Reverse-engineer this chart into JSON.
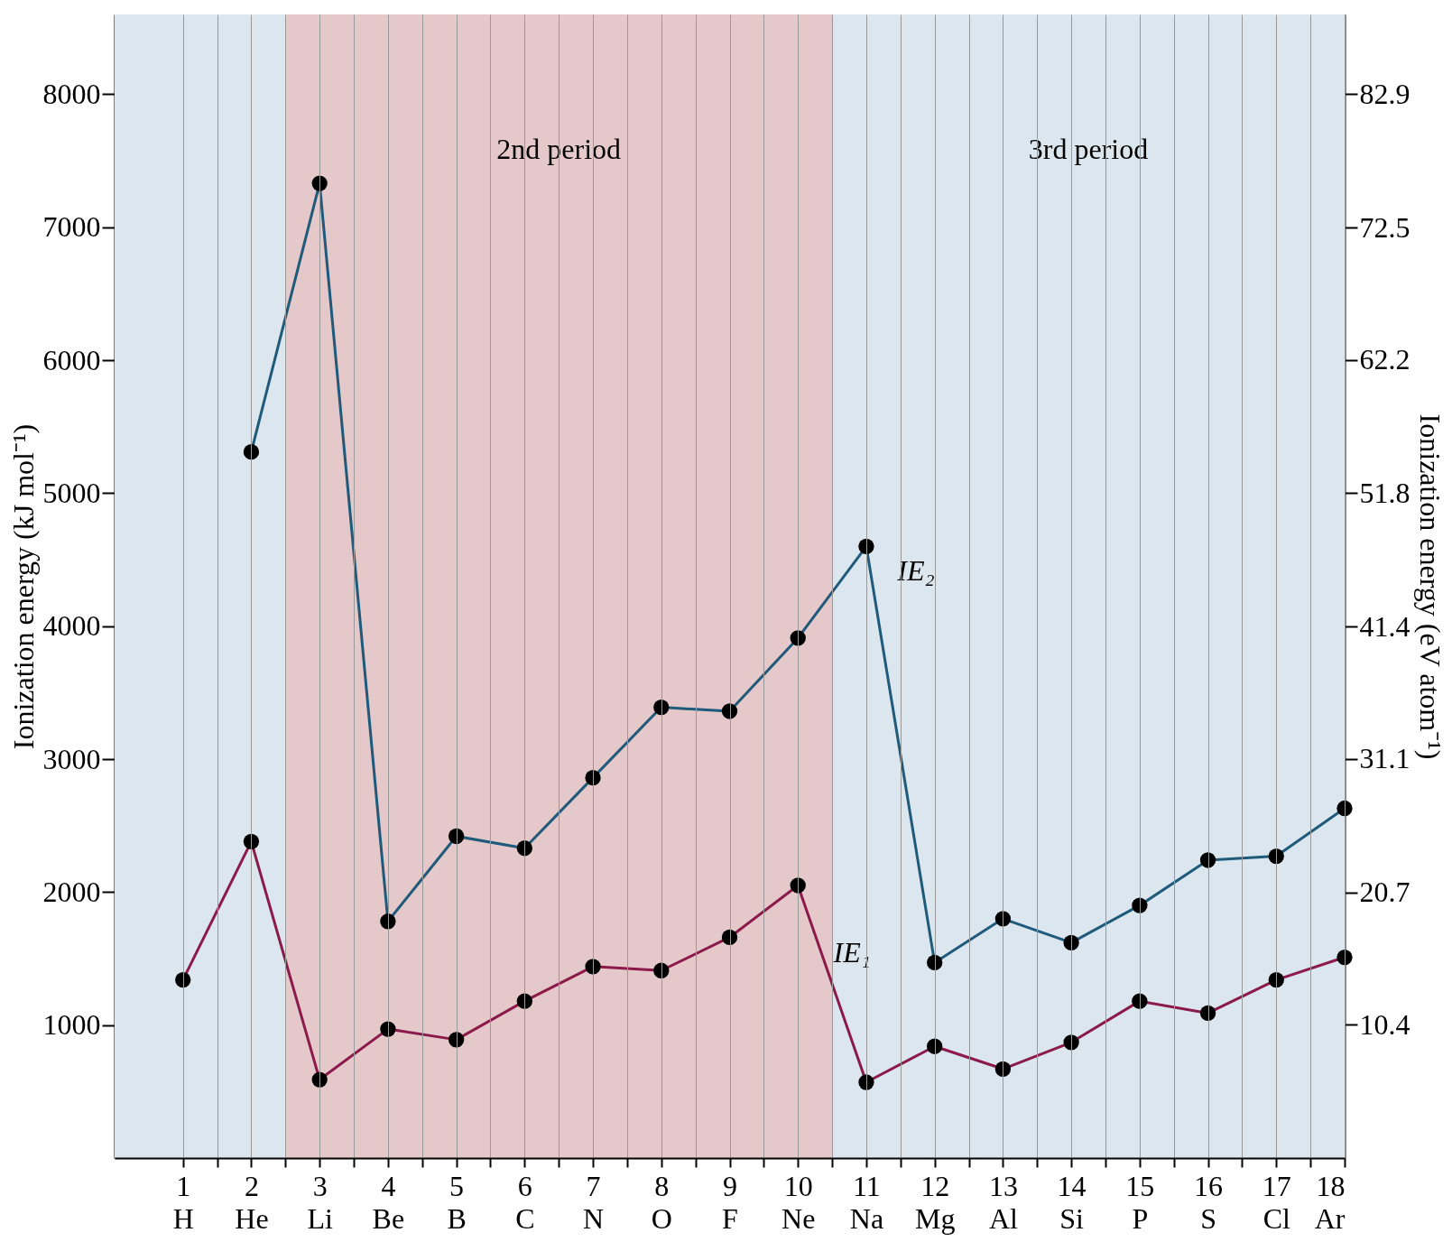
{
  "chart_data": {
    "type": "line",
    "ylabel": "Ionization energy (kJ mol⁻¹)",
    "y2label": "Ionization energy (eV atom⁻¹)",
    "x": [
      1,
      2,
      3,
      4,
      5,
      6,
      7,
      8,
      9,
      10,
      11,
      12,
      13,
      14,
      15,
      16,
      17,
      18
    ],
    "xlim": [
      0,
      18
    ],
    "xticks": [
      {
        "value": 1,
        "label": "1 H"
      },
      {
        "value": 1.5,
        "label": null
      },
      {
        "value": 2,
        "label": "2 He"
      },
      {
        "value": 2.5,
        "label": null
      },
      {
        "value": 3,
        "label": "3 Li"
      },
      {
        "value": 3.5,
        "label": null
      },
      {
        "value": 4,
        "label": "4 Be"
      },
      {
        "value": 4.5,
        "label": null
      },
      {
        "value": 5,
        "label": "5 B"
      },
      {
        "value": 5.5,
        "label": null
      },
      {
        "value": 6,
        "label": "6 C"
      },
      {
        "value": 6.5,
        "label": null
      },
      {
        "value": 7,
        "label": "7 N"
      },
      {
        "value": 7.5,
        "label": null
      },
      {
        "value": 8,
        "label": "8 O"
      },
      {
        "value": 8.5,
        "label": null
      },
      {
        "value": 9,
        "label": "9 F"
      },
      {
        "value": 9.5,
        "label": null
      },
      {
        "value": 10,
        "label": "10 Ne"
      },
      {
        "value": 10.5,
        "label": null
      },
      {
        "value": 11,
        "label": "11 Na"
      },
      {
        "value": 11.5,
        "label": null
      },
      {
        "value": 12,
        "label": "12 Mg"
      },
      {
        "value": 12.5,
        "label": null
      },
      {
        "value": 13,
        "label": "13 Al"
      },
      {
        "value": 13.5,
        "label": null
      },
      {
        "value": 14,
        "label": "14 Si"
      },
      {
        "value": 14.5,
        "label": null
      },
      {
        "value": 15,
        "label": "15 P"
      },
      {
        "value": 15.5,
        "label": null
      },
      {
        "value": 16,
        "label": "16 S"
      },
      {
        "value": 16.5,
        "label": null
      },
      {
        "value": 17,
        "label": "17 Cl"
      },
      {
        "value": 17.5,
        "label": null
      },
      {
        "value": 18,
        "label": "18 Ar"
      }
    ],
    "ylim": [
      0,
      8600
    ],
    "yticks": [
      {
        "value": 1000,
        "label": "1000"
      },
      {
        "value": 2000,
        "label": "2000"
      },
      {
        "value": 3000,
        "label": "3000"
      },
      {
        "value": 4000,
        "label": "4000"
      },
      {
        "value": 5000,
        "label": "5000"
      },
      {
        "value": 6000,
        "label": "6000"
      },
      {
        "value": 7000,
        "label": "7000"
      },
      {
        "value": 8000,
        "label": "8000"
      }
    ],
    "y2lim": [
      0,
      89.1
    ],
    "y2ticks": [
      10.4,
      20.7,
      31.1,
      41.4,
      51.8,
      62.2,
      72.5,
      82.9
    ],
    "series": [
      {
        "name": "IE₁",
        "color": "#8b1a4a",
        "values": [
          1340,
          2380,
          590,
          970,
          890,
          1180,
          1440,
          1410,
          1660,
          2050,
          570,
          840,
          670,
          870,
          1180,
          1090,
          1340,
          1510
        ]
      },
      {
        "name": "IE₂",
        "color": "#1f5a7a",
        "values": [
          null,
          5310,
          7330,
          1780,
          2420,
          2330,
          2860,
          3390,
          3360,
          3910,
          4600,
          1470,
          1800,
          1620,
          1900,
          2240,
          2270,
          2630
        ]
      }
    ],
    "bands": [
      {
        "axis": "x",
        "from": 0,
        "to": 2.5,
        "color": "#dce6ee"
      },
      {
        "axis": "x",
        "from": 2.5,
        "to": 10.5,
        "color": "#e4c8ca",
        "label": "2nd period"
      },
      {
        "axis": "x",
        "from": 10.5,
        "to": 18,
        "color": "#dce6ee",
        "label": "3rd period"
      }
    ],
    "marker": "circle",
    "line_style": "solid",
    "grid": "x"
  }
}
